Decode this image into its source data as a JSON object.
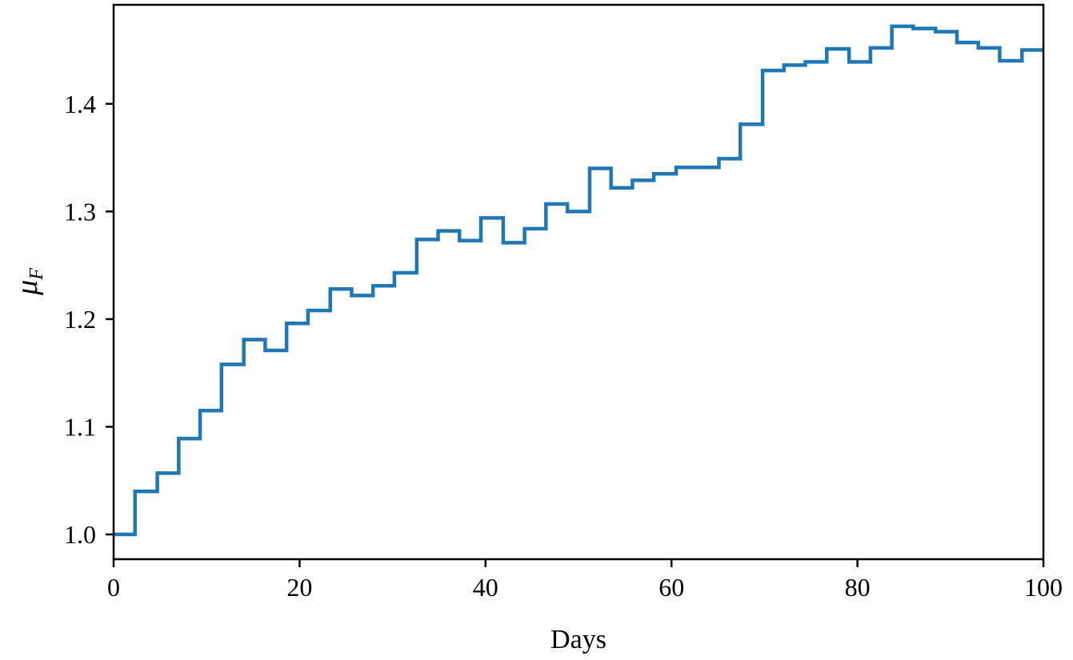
{
  "chart_data": {
    "type": "line",
    "step": "post",
    "xlabel": "Days",
    "ylabel_main": "μ",
    "ylabel_sub": "F",
    "xlim": [
      0,
      100
    ],
    "ylim": [
      0.977,
      1.492
    ],
    "xticks": [
      0,
      20,
      40,
      60,
      80,
      100
    ],
    "yticks": [
      1.0,
      1.1,
      1.2,
      1.3,
      1.4
    ],
    "xtick_labels": [
      "0",
      "20",
      "40",
      "60",
      "80",
      "100"
    ],
    "ytick_labels": [
      "1.0",
      "1.1",
      "1.2",
      "1.3",
      "1.4"
    ],
    "grid": false,
    "series": [
      {
        "color": "#1f77b4",
        "x": [
          0,
          2.3,
          4.7,
          7.0,
          9.3,
          11.6,
          14.0,
          16.3,
          18.6,
          20.9,
          23.3,
          25.6,
          27.9,
          30.2,
          32.6,
          34.9,
          37.2,
          39.5,
          41.9,
          44.2,
          46.5,
          48.8,
          51.2,
          53.5,
          55.8,
          58.1,
          60.5,
          62.8,
          65.1,
          67.4,
          69.8,
          72.1,
          74.4,
          76.7,
          79.1,
          81.4,
          83.7,
          86.0,
          88.4,
          90.7,
          93.0,
          95.3,
          97.7,
          100.0
        ],
        "y": [
          1.0,
          1.04,
          1.057,
          1.089,
          1.115,
          1.158,
          1.181,
          1.171,
          1.196,
          1.208,
          1.228,
          1.222,
          1.231,
          1.243,
          1.274,
          1.282,
          1.273,
          1.294,
          1.271,
          1.284,
          1.307,
          1.3,
          1.34,
          1.322,
          1.329,
          1.335,
          1.341,
          1.341,
          1.349,
          1.381,
          1.431,
          1.436,
          1.439,
          1.451,
          1.439,
          1.452,
          1.472,
          1.47,
          1.467,
          1.457,
          1.452,
          1.44,
          1.45,
          1.45
        ]
      }
    ]
  }
}
